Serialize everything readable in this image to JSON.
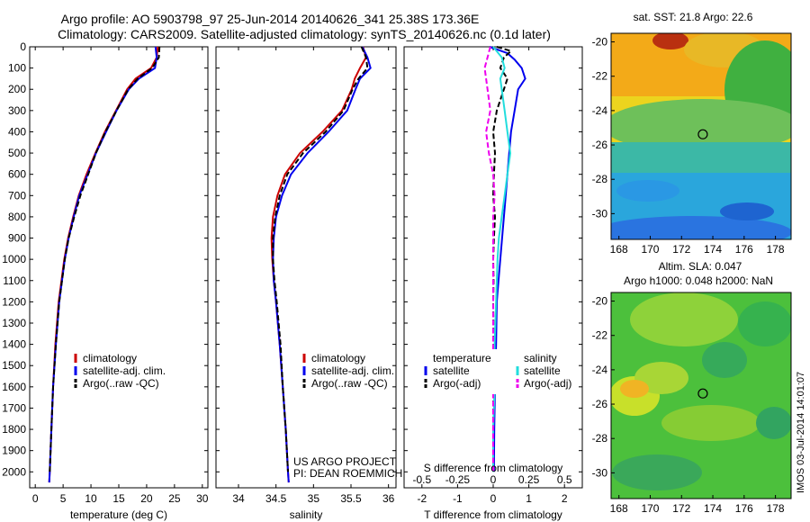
{
  "header": {
    "line1": "Argo profile: AO 5903798_97 25-Jun-2014 20140626_341 25.38S 173.36E",
    "line2": "Climatology: CARS2009. Satellite-adjusted climatology: synTS_20140626.nc (0.1d later)"
  },
  "side_stamp": "IMOS 03-Jul-2014 14:01:07",
  "colors": {
    "climatology": "#cc0000",
    "satellite": "#0000ee",
    "argo": "#000000",
    "satellite_salinity": "#22dddd",
    "argo_salinity": "#ee00ee"
  },
  "chart_data": [
    {
      "type": "line",
      "panel": "temperature",
      "xlabel": "temperature (deg C)",
      "xlim": [
        -1,
        31
      ],
      "xticks": [
        0,
        5,
        10,
        15,
        20,
        25,
        30
      ],
      "ylim": [
        2075,
        0
      ],
      "yticks": [
        0,
        100,
        200,
        300,
        400,
        500,
        600,
        700,
        800,
        900,
        1000,
        1100,
        1200,
        1300,
        1400,
        1500,
        1600,
        1700,
        1800,
        1900,
        2000
      ],
      "legend": [
        "climatology",
        "satellite-adj. clim.",
        "Argo(..raw -QC)"
      ],
      "series": [
        {
          "name": "climatology",
          "color": "#cc0000",
          "depth": [
            0,
            50,
            100,
            150,
            200,
            300,
            400,
            500,
            600,
            700,
            800,
            900,
            1000,
            1200,
            1400,
            1600,
            1800,
            2000,
            2050
          ],
          "values": [
            22.0,
            21.8,
            20.8,
            18.0,
            16.5,
            14.5,
            12.5,
            10.8,
            9.2,
            7.8,
            6.8,
            5.9,
            5.2,
            4.2,
            3.6,
            3.2,
            2.9,
            2.6,
            2.5
          ]
        },
        {
          "name": "satellite-adj. clim.",
          "color": "#0000ee",
          "depth": [
            0,
            50,
            100,
            150,
            200,
            300,
            400,
            500,
            600,
            700,
            800,
            900,
            1000,
            1200,
            1400,
            1600,
            1800,
            2000,
            2050
          ],
          "values": [
            21.6,
            21.8,
            21.5,
            18.6,
            16.8,
            14.6,
            12.7,
            10.9,
            9.4,
            7.9,
            6.9,
            6.0,
            5.3,
            4.3,
            3.7,
            3.2,
            2.9,
            2.6,
            2.5
          ]
        },
        {
          "name": "Argo(..raw -QC)",
          "color": "#000000",
          "depth": [
            0,
            50,
            100,
            150,
            200,
            300,
            400,
            500,
            600,
            700,
            800,
            900,
            1000,
            1200,
            1400,
            1600,
            1800,
            2000
          ],
          "values": [
            22.3,
            22.2,
            21.0,
            18.4,
            16.7,
            14.6,
            12.6,
            10.9,
            9.5,
            8.1,
            7.0,
            6.0,
            5.3,
            4.3,
            3.7,
            3.2,
            2.9,
            2.6
          ]
        }
      ]
    },
    {
      "type": "line",
      "panel": "salinity",
      "xlabel": "salinity",
      "xlim": [
        33.7,
        36.1
      ],
      "xticks": [
        34,
        34.5,
        35,
        35.5,
        36
      ],
      "ylim": [
        2075,
        0
      ],
      "legend": [
        "climatology",
        "satellite-adj. clim.",
        "Argo(..raw -QC)"
      ],
      "series": [
        {
          "name": "climatology",
          "color": "#cc0000",
          "depth": [
            0,
            50,
            100,
            150,
            200,
            300,
            400,
            500,
            600,
            700,
            800,
            900,
            1000,
            1100,
            1200,
            1400,
            1600,
            1800,
            2000,
            2050
          ],
          "values": [
            35.66,
            35.7,
            35.62,
            35.55,
            35.51,
            35.38,
            35.12,
            34.82,
            34.62,
            34.52,
            34.46,
            34.44,
            34.45,
            34.47,
            34.5,
            34.55,
            34.59,
            34.63,
            34.66,
            34.67
          ]
        },
        {
          "name": "satellite-adj. clim.",
          "color": "#0000ee",
          "depth": [
            0,
            50,
            100,
            150,
            200,
            300,
            400,
            500,
            600,
            700,
            800,
            900,
            1000,
            1100,
            1200,
            1400,
            1600,
            1800,
            2000,
            2050
          ],
          "values": [
            35.65,
            35.72,
            35.76,
            35.62,
            35.56,
            35.45,
            35.2,
            34.92,
            34.7,
            34.58,
            34.5,
            34.47,
            34.46,
            34.47,
            34.5,
            34.55,
            34.59,
            34.63,
            34.66,
            34.67
          ]
        },
        {
          "name": "Argo(..raw -QC)",
          "color": "#000000",
          "depth": [
            0,
            50,
            100,
            150,
            200,
            300,
            400,
            500,
            600,
            700,
            800,
            900,
            1000,
            1100,
            1200,
            1400,
            1600,
            1800,
            2000
          ],
          "values": [
            35.64,
            35.7,
            35.72,
            35.6,
            35.52,
            35.4,
            35.16,
            34.86,
            34.65,
            34.55,
            34.49,
            34.46,
            34.46,
            34.48,
            34.51,
            34.56,
            34.59,
            34.63,
            34.66
          ]
        }
      ]
    },
    {
      "type": "line",
      "panel": "difference",
      "xlabel": "T difference from climatology",
      "xlabel_top": "S difference from climatology",
      "xlim": [
        -2.5,
        2.5
      ],
      "xticks": [
        -2,
        -1,
        0,
        1,
        2
      ],
      "xticks_top": [
        -0.5,
        -0.25,
        0,
        0.25,
        0.5
      ],
      "ylim": [
        2075,
        0
      ],
      "legend_temperature_title": "temperature",
      "legend_salinity_title": "salinity",
      "legend_temperature": [
        "satellite",
        "Argo(-adj)"
      ],
      "legend_salinity": [
        "satellite",
        "Argo(-adj)"
      ],
      "series": [
        {
          "name": "satellite",
          "group": "temperature",
          "color": "#0000ee",
          "depth": [
            0,
            30,
            60,
            100,
            150,
            200,
            300,
            400,
            500,
            600,
            700,
            800,
            900,
            1000,
            1100,
            1200,
            1400,
            1600,
            1800,
            2000
          ],
          "values": [
            -0.1,
            0.4,
            0.6,
            0.8,
            0.9,
            0.7,
            0.6,
            0.5,
            0.45,
            0.4,
            0.35,
            0.3,
            0.25,
            0.2,
            0.15,
            0.1,
            0.08,
            0.05,
            0.03,
            0.02
          ]
        },
        {
          "name": "Argo(-adj)",
          "group": "temperature",
          "color": "#000000",
          "depth": [
            0,
            20,
            50,
            100,
            150,
            200,
            300,
            400,
            500,
            600,
            700,
            800,
            900,
            1000,
            1100,
            1200,
            1400,
            1600,
            1800,
            2000
          ],
          "values": [
            0.1,
            0.5,
            0.3,
            0.2,
            0.4,
            0.3,
            0.1,
            0.0,
            0.05,
            0.02,
            0.0,
            0.05,
            0.02,
            0.0,
            0.01,
            0.0,
            0.01,
            0.0,
            0.0,
            0.0
          ]
        },
        {
          "name": "satellite",
          "group": "salinity",
          "color": "#22dddd",
          "depth": [
            0,
            50,
            100,
            150,
            200,
            300,
            400,
            500,
            600,
            700,
            800,
            900,
            1000,
            1200,
            1400,
            1600,
            1800,
            2000
          ],
          "values": [
            0.0,
            0.06,
            0.08,
            0.05,
            0.06,
            0.08,
            0.1,
            0.12,
            0.1,
            0.08,
            0.06,
            0.04,
            0.03,
            0.02,
            0.01,
            0.01,
            0.0,
            0.0
          ]
        },
        {
          "name": "Argo(-adj)",
          "group": "salinity",
          "color": "#ee00ee",
          "depth": [
            0,
            50,
            100,
            150,
            200,
            300,
            400,
            500,
            600,
            700,
            800,
            900,
            1000,
            1200,
            1400,
            1600,
            1800,
            2000
          ],
          "values": [
            -0.02,
            -0.04,
            -0.06,
            -0.05,
            -0.04,
            -0.02,
            -0.05,
            -0.03,
            0.0,
            0.01,
            0.0,
            0.0,
            0.0,
            0.0,
            0.0,
            0.0,
            0.0,
            0.0
          ]
        }
      ]
    }
  ],
  "maps": [
    {
      "title": "sat. SST: 21.8  Argo: 22.6",
      "xticks": [
        168,
        170,
        172,
        174,
        176,
        178
      ],
      "yticks": [
        -20,
        -22,
        -24,
        -26,
        -28,
        -30
      ],
      "lon_range": [
        167.5,
        179
      ],
      "lat_range": [
        -31.5,
        -19.5
      ],
      "argo_position": {
        "lon": 173.36,
        "lat": -25.38
      }
    },
    {
      "title_line1": "Altim. SLA: 0.047",
      "title_line2": "Argo h1000: 0.048  h2000: NaN",
      "xticks": [
        168,
        170,
        172,
        174,
        176,
        178
      ],
      "yticks": [
        -20,
        -22,
        -24,
        -26,
        -28,
        -30
      ],
      "lon_range": [
        167.5,
        179
      ],
      "lat_range": [
        -31.5,
        -19.5
      ],
      "argo_position": {
        "lon": 173.36,
        "lat": -25.38
      }
    }
  ],
  "credits": {
    "line1": "US ARGO PROJECT",
    "line2": "PI: DEAN ROEMMICH"
  }
}
